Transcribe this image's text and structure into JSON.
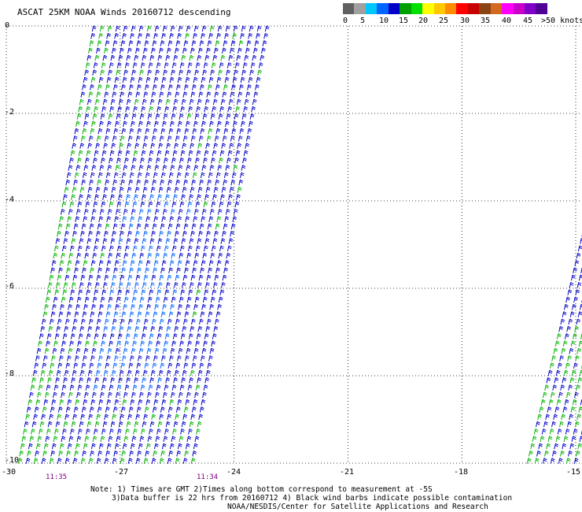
{
  "title": "ASCAT 25KM NOAA Winds 20160712 descending",
  "scale": {
    "colors": [
      "#606060",
      "#a0a0a0",
      "#00c8ff",
      "#0064ff",
      "#0000c8",
      "#00a000",
      "#00e000",
      "#ffff00",
      "#ffc800",
      "#ff8c00",
      "#ff0000",
      "#c80000",
      "#8b4513",
      "#d2691e",
      "#ff00ff",
      "#c800c8",
      "#8000c8",
      "#500096"
    ],
    "labels": [
      "0",
      "5",
      "10",
      "15",
      "20",
      "25",
      "30",
      "35",
      "40",
      "45",
      ">50 knots"
    ]
  },
  "axes": {
    "y_labels": [
      "0",
      "-2",
      "-4",
      "-6",
      "-8",
      "-10"
    ],
    "x_labels": [
      "-30",
      "-27",
      "-24",
      "-21",
      "-18",
      "-15"
    ]
  },
  "times": [
    "11:35",
    "11:34"
  ],
  "notes": [
    "Note: 1) Times are GMT 2)Times along bottom correspond to measurement at -5S",
    "3)Data buffer is 22 hrs from 20160712 4) Black wind barbs indicate possible contamination",
    "NOAA/NESDIS/Center for Satellite Applications and Research"
  ]
}
